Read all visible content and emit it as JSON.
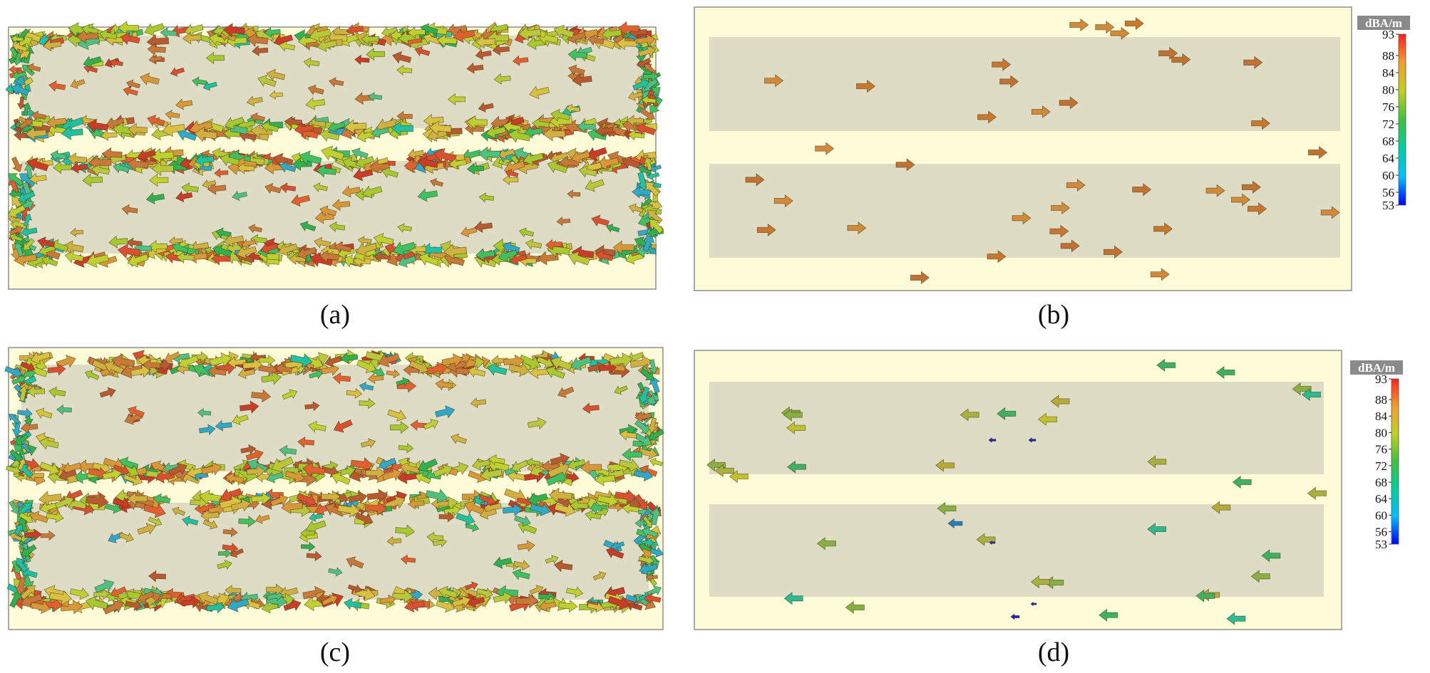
{
  "colors": {
    "panel_bg": "#fdfbd8",
    "track_fill": "#dedcc4",
    "panel_border": "#8e8e8e",
    "header_bg": "#8a8a8a",
    "header_text": "#ffffff",
    "colorbar_stops": [
      "#0000ff",
      "#00bfff",
      "#00d0a0",
      "#40c040",
      "#c0d020",
      "#f0a030",
      "#ff2020"
    ]
  },
  "figure": {
    "panels": [
      {
        "label": "(a)",
        "arrow_style": "dense-mixed"
      },
      {
        "label": "(b)",
        "arrow_style": "sparse-right"
      },
      {
        "label": "(c)",
        "arrow_style": "dense-mixed"
      },
      {
        "label": "(d)",
        "arrow_style": "sparse-left"
      }
    ],
    "colorbar": {
      "unit": "dBA/m",
      "range": [
        53,
        93
      ],
      "ticks": [
        "93",
        "88",
        "84",
        "80",
        "76",
        "72",
        "68",
        "64",
        "60",
        "56",
        "53"
      ]
    },
    "arrow_icon": "arrow-glyph"
  }
}
